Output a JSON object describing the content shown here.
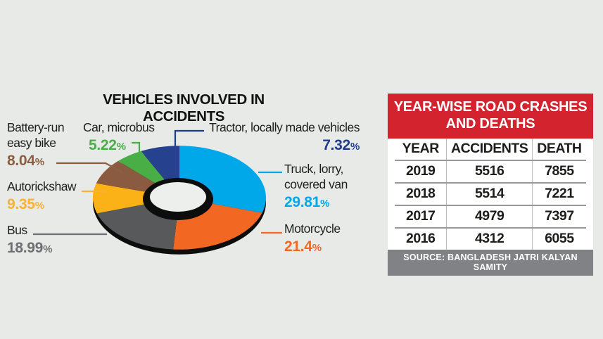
{
  "chart": {
    "percent_sign": "%",
    "background": "#e8eae8"
  },
  "chart_data": {
    "type": "pie",
    "subtype": "3d-donut",
    "title": "VEHICLES INVOLVED IN ACCIDENTS",
    "unit": "percent",
    "legend_position": "around-slices",
    "slices": [
      {
        "label": "Truck, lorry, covered van",
        "value": 29.81,
        "pct": "29.81",
        "color": "#00a7e9",
        "text_color": "#00a7e9"
      },
      {
        "label": "Motorcycle",
        "value": 21.4,
        "pct": "21.4",
        "color": "#f26822",
        "text_color": "#f26822"
      },
      {
        "label": "Bus",
        "value": 18.99,
        "pct": "18.99",
        "color": "#58595b",
        "text_color": "#6d6e71"
      },
      {
        "label": "Autorickshaw",
        "value": 9.35,
        "pct": "9.35",
        "color": "#fbb216",
        "text_color": "#f9b233"
      },
      {
        "label": "Battery-run easy bike",
        "value": 8.04,
        "pct": "8.04",
        "color": "#8a5a41",
        "text_color": "#8c5f43"
      },
      {
        "label": "Car, microbus",
        "value": 5.22,
        "pct": "5.22",
        "color": "#4aae46",
        "text_color": "#4aae46"
      },
      {
        "label": "Tractor, locally made vehicles",
        "value": 7.32,
        "pct": "7.32",
        "color": "#26418d",
        "text_color": "#1f3d8f"
      }
    ]
  },
  "table": {
    "title": "YEAR-WISE ROAD CRASHES AND DEATHS",
    "title_bg": "#d2232e",
    "columns": [
      "YEAR",
      "ACCIDENTS",
      "DEATH"
    ],
    "rows": [
      [
        "2019",
        "5516",
        "7855"
      ],
      [
        "2018",
        "5514",
        "7221"
      ],
      [
        "2017",
        "4979",
        "7397"
      ],
      [
        "2016",
        "4312",
        "6055"
      ]
    ],
    "source": "SOURCE: BANGLADESH JATRI KALYAN SAMITY",
    "source_bg": "#808285"
  }
}
